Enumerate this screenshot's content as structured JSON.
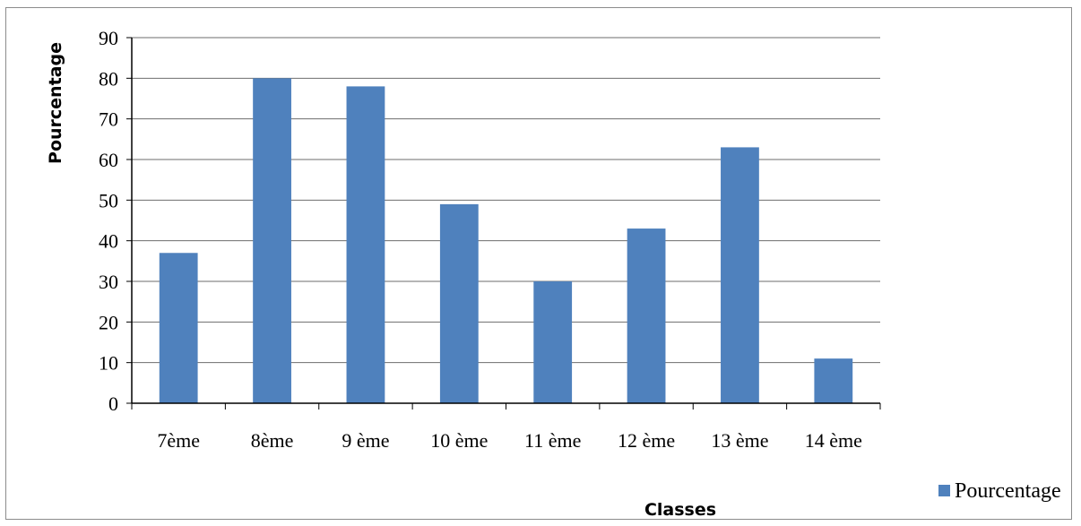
{
  "chart_data": {
    "type": "bar",
    "categories": [
      "7ème",
      "8ème",
      "9 ème",
      "10 ème",
      "11 ème",
      "12 ème",
      "13 ème",
      "14 ème"
    ],
    "series": [
      {
        "name": "Pourcentage",
        "values": [
          37,
          80,
          78,
          49,
          30,
          43,
          63,
          11
        ],
        "color": "#4f81bd"
      }
    ],
    "xlabel": "Classes",
    "ylabel": "Pourcentage",
    "ylim": [
      0,
      90
    ],
    "yticks": [
      0,
      10,
      20,
      30,
      40,
      50,
      60,
      70,
      80,
      90
    ],
    "grid": true,
    "legend_position": "bottom-right"
  }
}
